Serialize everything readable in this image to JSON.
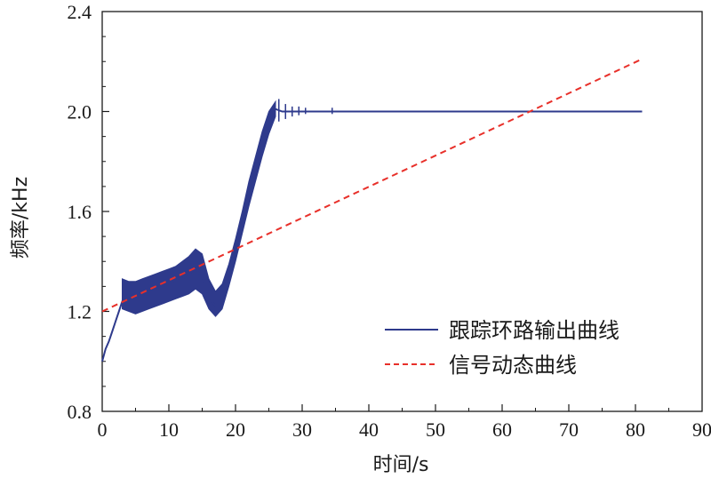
{
  "chart_data": {
    "type": "line",
    "xlabel": "时间/s",
    "ylabel": "频率/kHz",
    "xlim": [
      0,
      90
    ],
    "ylim": [
      0.8,
      2.4
    ],
    "x_ticks": [
      "0",
      "10",
      "20",
      "30",
      "40",
      "50",
      "60",
      "70",
      "80",
      "90"
    ],
    "y_ticks": [
      "0.8",
      "1.2",
      "1.6",
      "2.0",
      "2.4"
    ],
    "x_tick_values": [
      0,
      10,
      20,
      30,
      40,
      50,
      60,
      70,
      80,
      90
    ],
    "y_tick_values": [
      0.8,
      1.2,
      1.6,
      2.0,
      2.4
    ],
    "grid": false,
    "legend_position": "bottom-right",
    "series": [
      {
        "name": "跟踪环路输出曲线",
        "color": "#2e3a8c",
        "style": "solid",
        "x": [
          0,
          0.5,
          1,
          1.5,
          2,
          2.5,
          3,
          3.5,
          4,
          5,
          6,
          7,
          8,
          9,
          10,
          11,
          12,
          13,
          14,
          15,
          16,
          17,
          17.5,
          18,
          19,
          20,
          21,
          22,
          23,
          24,
          25,
          26,
          27,
          28,
          30,
          32,
          34,
          40,
          50,
          60,
          70,
          81
        ],
        "y": [
          1.0,
          1.05,
          1.08,
          1.12,
          1.16,
          1.2,
          1.24,
          1.27,
          1.28,
          1.26,
          1.27,
          1.28,
          1.29,
          1.3,
          1.31,
          1.32,
          1.33,
          1.35,
          1.37,
          1.34,
          1.26,
          1.22,
          1.22,
          1.26,
          1.35,
          1.45,
          1.56,
          1.67,
          1.77,
          1.87,
          1.96,
          2.01,
          2.0,
          2.0,
          2.0,
          2.0,
          2.0,
          2.0,
          2.0,
          2.0,
          2.0,
          2.0
        ],
        "band_x": [
          3,
          4,
          5,
          6,
          7,
          8,
          9,
          10,
          11,
          12,
          13,
          14,
          15,
          16,
          17,
          18,
          19,
          20,
          21,
          22,
          23,
          24,
          25,
          26
        ],
        "band_lo": [
          1.21,
          1.2,
          1.19,
          1.2,
          1.21,
          1.22,
          1.23,
          1.24,
          1.25,
          1.26,
          1.27,
          1.29,
          1.27,
          1.21,
          1.18,
          1.21,
          1.3,
          1.4,
          1.51,
          1.62,
          1.72,
          1.82,
          1.91,
          1.98
        ],
        "band_hi": [
          1.33,
          1.32,
          1.32,
          1.33,
          1.34,
          1.35,
          1.36,
          1.37,
          1.38,
          1.4,
          1.42,
          1.45,
          1.43,
          1.33,
          1.28,
          1.31,
          1.39,
          1.49,
          1.6,
          1.72,
          1.82,
          1.92,
          2.0,
          2.04
        ]
      },
      {
        "name": "信号动态曲线",
        "color": "#e8302a",
        "style": "dashed",
        "x": [
          0,
          81
        ],
        "y": [
          1.2,
          2.21
        ]
      }
    ]
  }
}
